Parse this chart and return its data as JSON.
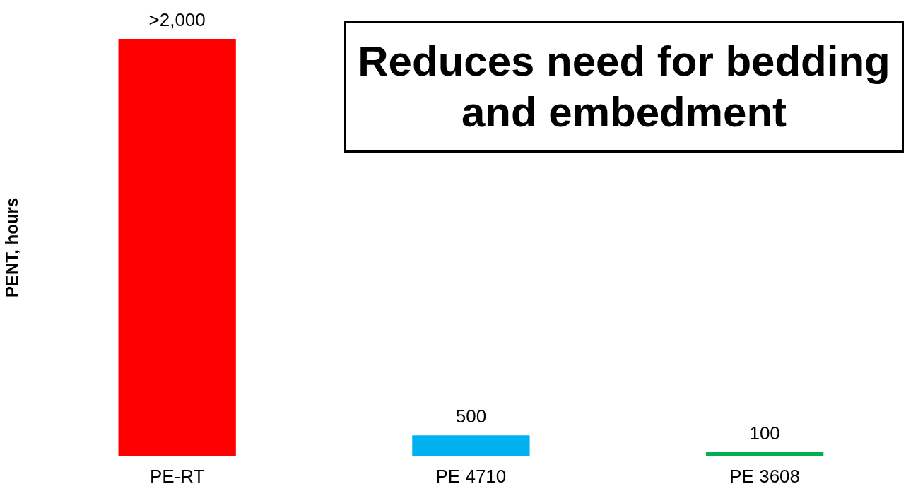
{
  "chart_data": {
    "type": "bar",
    "ylabel": "PENT, hours",
    "categories": [
      "PE-RT",
      "PE 4710",
      "PE 3608"
    ],
    "values": [
      10000,
      500,
      100
    ],
    "value_labels": [
      ">2,000",
      "500",
      "100"
    ],
    "colors": [
      "#ff0000",
      "#00b0f0",
      "#00b050"
    ],
    "annotations": [
      "Reduces need for bedding and embedment"
    ],
    "grid": false,
    "legend": false
  }
}
